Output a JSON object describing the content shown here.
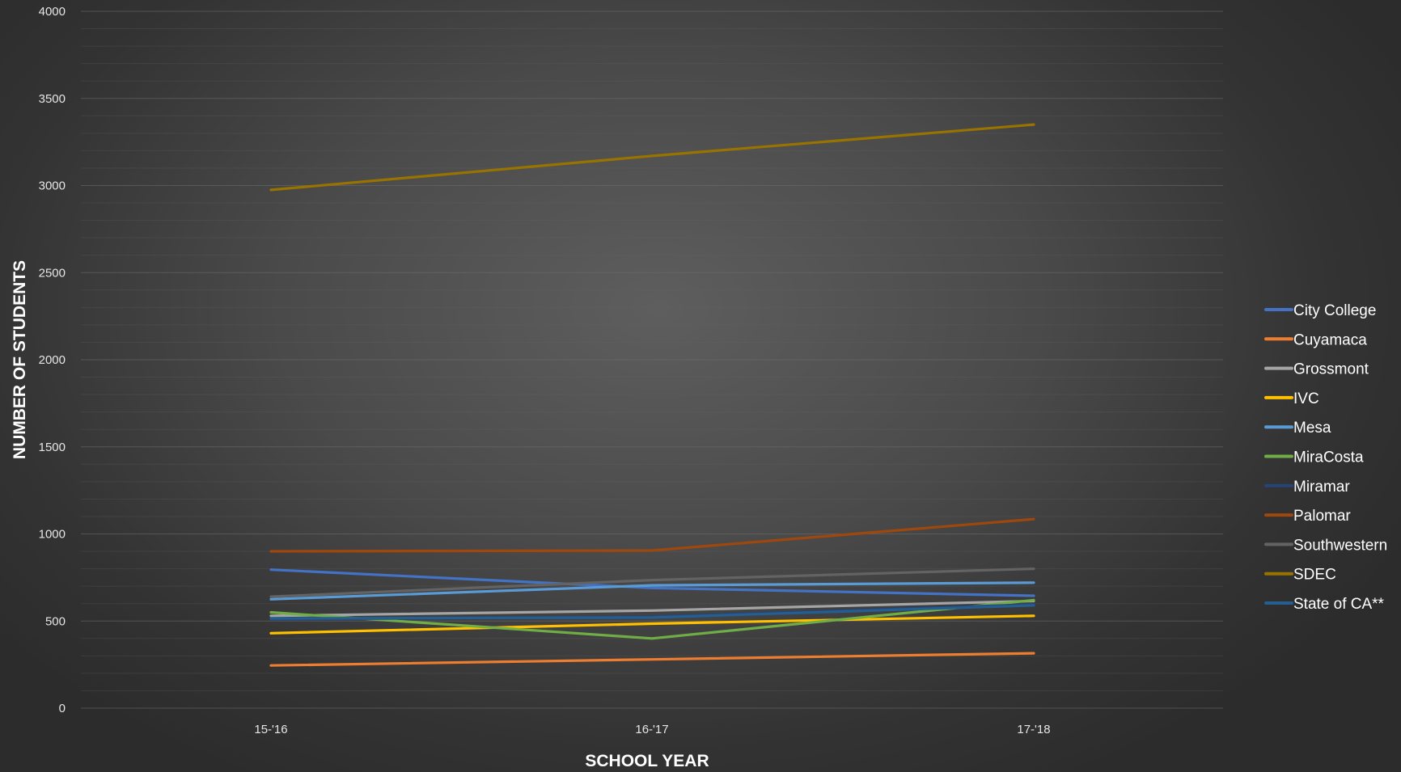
{
  "chart_data": {
    "type": "line",
    "title": "",
    "xlabel": "SCHOOL YEAR",
    "ylabel": "NUMBER OF STUDENTS",
    "categories": [
      "15-'16",
      "16-'17",
      "17-'18"
    ],
    "ylim": [
      0,
      4000
    ],
    "yticks": [
      0,
      500,
      1000,
      1500,
      2000,
      2500,
      3000,
      3500,
      4000
    ],
    "grid": true,
    "legend_position": "right",
    "series": [
      {
        "name": "City College",
        "color": "#4472c4",
        "values": [
          795,
          690,
          645
        ]
      },
      {
        "name": "Cuyamaca",
        "color": "#ed7d31",
        "values": [
          245,
          280,
          315
        ]
      },
      {
        "name": "Grossmont",
        "color": "#a5a5a5",
        "values": [
          530,
          560,
          615
        ]
      },
      {
        "name": "IVC",
        "color": "#ffc000",
        "values": [
          430,
          485,
          530
        ]
      },
      {
        "name": "Mesa",
        "color": "#5b9bd5",
        "values": [
          625,
          705,
          720
        ]
      },
      {
        "name": "MiraCosta",
        "color": "#70ad47",
        "values": [
          550,
          400,
          620
        ]
      },
      {
        "name": "Miramar",
        "color": "#264478",
        "values": [
          510,
          525,
          595
        ]
      },
      {
        "name": "Palomar",
        "color": "#9e480e",
        "values": [
          900,
          905,
          1085
        ]
      },
      {
        "name": "Southwestern",
        "color": "#636363",
        "values": [
          640,
          735,
          800
        ]
      },
      {
        "name": "SDEC",
        "color": "#997300",
        "values": [
          2975,
          3170,
          3350
        ]
      },
      {
        "name": "State of CA**",
        "color": "#255e91",
        "values": [
          515,
          520,
          590
        ]
      }
    ]
  }
}
